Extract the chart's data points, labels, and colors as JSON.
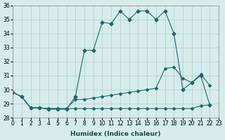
{
  "xlabel": "Humidex (Indice chaleur)",
  "background_color": "#d6ecea",
  "grid_color": "#b0cece",
  "line_color": "#1a6b6b",
  "xlim": [
    0,
    23
  ],
  "ylim": [
    28,
    36
  ],
  "yticks": [
    28,
    29,
    30,
    31,
    32,
    33,
    34,
    35,
    36
  ],
  "xticks": [
    0,
    1,
    2,
    3,
    4,
    5,
    6,
    7,
    8,
    9,
    10,
    11,
    12,
    13,
    14,
    15,
    16,
    17,
    18,
    19,
    20,
    21,
    22,
    23
  ],
  "x_main": [
    0,
    1,
    2,
    3,
    4,
    5,
    6,
    7,
    8,
    9,
    10,
    11,
    12,
    13,
    14,
    15,
    16,
    17,
    18,
    19,
    20,
    21,
    22
  ],
  "y_main": [
    29.8,
    29.5,
    28.7,
    28.7,
    28.6,
    28.6,
    28.6,
    29.5,
    32.8,
    32.8,
    34.8,
    34.7,
    35.6,
    35.0,
    35.6,
    35.6,
    35.0,
    35.6,
    34.0,
    30.0,
    30.5,
    31.0,
    28.9
  ],
  "x_line2": [
    0,
    1,
    2,
    3,
    4,
    5,
    6,
    7,
    8,
    9,
    10,
    11,
    12,
    13,
    14,
    15,
    16,
    17,
    18,
    19,
    20,
    21,
    22
  ],
  "y_line2": [
    29.8,
    29.5,
    28.7,
    28.7,
    28.65,
    28.65,
    28.65,
    28.65,
    28.65,
    28.65,
    28.65,
    28.65,
    28.65,
    28.65,
    28.65,
    28.65,
    28.65,
    28.65,
    28.65,
    28.65,
    28.65,
    28.85,
    28.9
  ],
  "x_line3": [
    0,
    1,
    2,
    3,
    4,
    5,
    6,
    7,
    8,
    9,
    10,
    11,
    12,
    13,
    14,
    15,
    16,
    17,
    18,
    19,
    20,
    21,
    22
  ],
  "y_line3": [
    29.8,
    29.5,
    28.7,
    28.7,
    28.65,
    28.65,
    28.65,
    29.3,
    29.3,
    29.4,
    29.5,
    29.6,
    29.7,
    29.8,
    29.9,
    30.0,
    30.1,
    31.5,
    31.6,
    30.8,
    30.5,
    31.1,
    30.3
  ]
}
